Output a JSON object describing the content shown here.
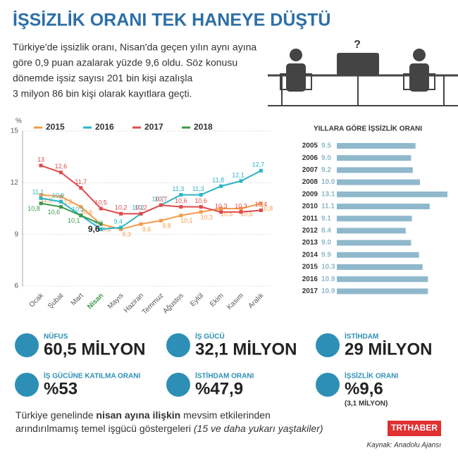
{
  "header": {
    "title": "İŞSİZLİK ORANI TEK HANEYE DÜŞTÜ",
    "intro": [
      "Türkiye'de işsizlik oranı, Nisan'da geçen yılın aynı ayına",
      "göre 0,9 puan azalarak yüzde 9,6 oldu. Söz konusu",
      "dönemde işsiz sayısı 201 bin kişi azalışla",
      "3 milyon 86 bin kişi olarak kayıtlara geçti."
    ],
    "question": "?"
  },
  "chart_data": [
    {
      "type": "line",
      "y_label": "%",
      "categories": [
        "Ocak",
        "Şubat",
        "Mart",
        "Nisan",
        "Mayıs",
        "Haziran",
        "Temmuz",
        "Ağustos",
        "Eylül",
        "Ekim",
        "Kasım",
        "Aralık"
      ],
      "ylim": [
        6,
        15
      ],
      "yticks": [
        6,
        9,
        12,
        15
      ],
      "series": [
        {
          "name": "2015",
          "color": "#f39c4a",
          "values": [
            11.3,
            11.2,
            10.6,
            9.6,
            9.3,
            9.6,
            9.8,
            10.1,
            10.3,
            10.5,
            10.5,
            10.8
          ],
          "value_labels": [
            "11,3",
            "11,2",
            "10,6",
            "9,6",
            "9,3",
            "9,6",
            "9,8",
            "10,1",
            "10,3",
            "10,5",
            "10,5",
            "10,8"
          ]
        },
        {
          "name": "2016",
          "color": "#2bb5c7",
          "values": [
            11.1,
            10.9,
            10.1,
            9.3,
            9.4,
            10.2,
            10.7,
            11.3,
            11.3,
            11.8,
            12.1,
            12.7
          ],
          "value_labels": [
            "11,1",
            "10,9",
            "10,1",
            "9,3",
            "9,4",
            "10,2",
            "10,7",
            "11,3",
            "11,3",
            "11,8",
            "12,1",
            "12,7"
          ]
        },
        {
          "name": "2017",
          "color": "#e04a4a",
          "values": [
            13,
            12.6,
            11.7,
            10.5,
            10.2,
            10.2,
            10.7,
            10.6,
            10.6,
            10.3,
            10.3,
            10.4
          ],
          "value_labels": [
            "13",
            "12,6",
            "11,7",
            "10,5",
            "10,2",
            "10,2",
            "10,7",
            "10,6",
            "10,6",
            "10,3",
            "10,3",
            "10,4"
          ]
        },
        {
          "name": "2018",
          "color": "#3a9a4a",
          "values": [
            10.8,
            10.6,
            10.1,
            9.6,
            null,
            null,
            null,
            null,
            null,
            null,
            null,
            null
          ],
          "value_labels": [
            "10,8",
            "10,6",
            "10,1",
            "9,6",
            null,
            null,
            null,
            null,
            null,
            null,
            null,
            null
          ]
        }
      ]
    },
    {
      "type": "hbar",
      "title": "YILLARA GÖRE İŞSİZLİK ORANI",
      "categories": [
        "2005",
        "2006",
        "2007",
        "2008",
        "2009",
        "2010",
        "2011",
        "2012",
        "2013",
        "2014",
        "2015",
        "2016",
        "2017"
      ],
      "values": [
        9.5,
        9.0,
        9.2,
        10.0,
        13.1,
        11.1,
        9.1,
        8.4,
        9.0,
        9.9,
        10.3,
        10.9,
        10.9
      ],
      "value_labels": [
        "9.5",
        "9.0",
        "9.2",
        "10.0",
        "13.1",
        "11.1",
        "9.1",
        "8.4",
        "9.0",
        "9.9",
        "10.3",
        "10.9",
        "10.9"
      ],
      "color": "#8fb8cc"
    }
  ],
  "stats": [
    {
      "label": "NÜFUS",
      "value": "60,5 MİLYON"
    },
    {
      "label": "İŞ GÜCÜ",
      "value": "32,1 MİLYON"
    },
    {
      "label": "İSTİHDAM",
      "value": "29 MİLYON"
    },
    {
      "label": "İŞ GÜCÜNE KATILMA ORANI",
      "value": "%53"
    },
    {
      "label": "İSTİHDAM ORANI",
      "value": "%47,9"
    },
    {
      "label": "İŞSİZLİK ORANI",
      "value": "%9,6",
      "note": "(3,1 MİLYON)"
    }
  ],
  "footer": {
    "note": [
      "Türkiye genelinde ",
      "nisan ayına ilişkin",
      " mevsim etkilerinden",
      "arındırılmamış temel işgücü göstergeleri ",
      "(15 ve daha yukarı yaştakiler)"
    ],
    "brand": "TRTHABER",
    "source": "Kaynak: Anadolu Ajansı"
  }
}
